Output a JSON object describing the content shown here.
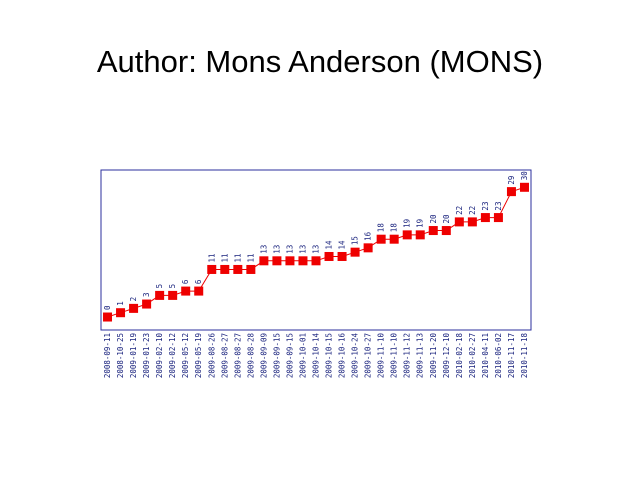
{
  "chart_data": {
    "type": "line",
    "title": "Author: Mons Anderson (MONS)",
    "categories": [
      "2008-09-11",
      "2008-10-25",
      "2009-01-19",
      "2009-01-23",
      "2009-02-10",
      "2009-02-12",
      "2009-05-12",
      "2009-05-19",
      "2009-08-26",
      "2009-08-27",
      "2009-08-27",
      "2009-08-28",
      "2009-09-09",
      "2009-09-15",
      "2009-09-15",
      "2009-10-01",
      "2009-10-14",
      "2009-10-15",
      "2009-10-16",
      "2009-10-24",
      "2009-10-27",
      "2009-11-10",
      "2009-11-10",
      "2009-11-12",
      "2009-11-13",
      "2009-11-20",
      "2009-12-10",
      "2010-02-18",
      "2010-02-27",
      "2010-04-11",
      "2010-06-02",
      "2010-11-17",
      "2010-11-18"
    ],
    "values": [
      0,
      1,
      2,
      3,
      5,
      5,
      6,
      6,
      11,
      11,
      11,
      11,
      13,
      13,
      13,
      13,
      13,
      14,
      14,
      15,
      16,
      18,
      18,
      19,
      19,
      20,
      20,
      22,
      22,
      23,
      23,
      29,
      30
    ],
    "color": "#ee0000",
    "border_color": "#2b2f9e",
    "label_color": "#1a237e",
    "ylim": [
      -3,
      34
    ]
  }
}
